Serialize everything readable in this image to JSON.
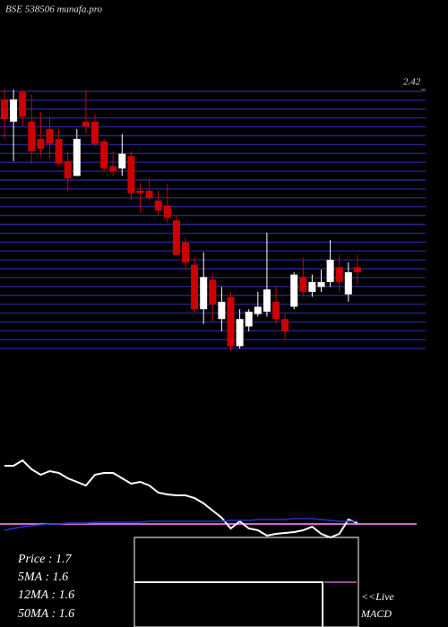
{
  "chart_data": [
    {
      "type": "candlestick",
      "title": "BSE 538506 munafa.pro",
      "ylim": [
        1.36,
        2.42
      ],
      "yticks": [
        2.42
      ],
      "up_color": "#ffffff",
      "down_color": "#cc0000",
      "open": [
        2.38,
        2.29,
        2.41,
        2.29,
        2.22,
        2.26,
        2.22,
        2.13,
        2.07,
        2.29,
        2.29,
        2.21,
        2.11,
        2.1,
        2.15,
        2.01,
        2.01,
        1.97,
        1.95,
        1.89,
        1.8,
        1.71,
        1.53,
        1.65,
        1.49,
        1.58,
        1.38,
        1.46,
        1.51,
        1.52,
        1.56,
        1.49,
        1.54,
        1.66,
        1.6,
        1.62,
        1.64,
        1.7,
        1.59,
        1.7
      ],
      "high": [
        2.42,
        2.42,
        2.42,
        2.4,
        2.33,
        2.31,
        2.26,
        2.17,
        2.26,
        2.42,
        2.32,
        2.22,
        2.17,
        2.24,
        2.17,
        2.04,
        2.06,
        2.01,
        2.04,
        1.91,
        1.82,
        1.74,
        1.76,
        1.67,
        1.62,
        1.6,
        1.53,
        1.53,
        1.6,
        1.84,
        1.62,
        1.51,
        1.68,
        1.74,
        1.67,
        1.69,
        1.81,
        1.75,
        1.72,
        1.75
      ],
      "low": [
        2.22,
        2.13,
        2.27,
        2.12,
        2.15,
        2.14,
        2.11,
        2.01,
        2.07,
        2.24,
        2.19,
        2.09,
        2.07,
        2.07,
        1.97,
        1.92,
        1.97,
        1.91,
        1.88,
        1.75,
        1.69,
        1.52,
        1.47,
        1.48,
        1.44,
        1.36,
        1.37,
        1.44,
        1.5,
        1.5,
        1.47,
        1.41,
        1.53,
        1.58,
        1.58,
        1.6,
        1.62,
        1.6,
        1.56,
        1.63
      ],
      "close": [
        2.3,
        2.38,
        2.31,
        2.17,
        2.18,
        2.2,
        2.12,
        2.06,
        2.22,
        2.27,
        2.2,
        2.1,
        2.09,
        2.16,
        2.0,
        2.0,
        1.98,
        1.93,
        1.9,
        1.75,
        1.72,
        1.53,
        1.66,
        1.55,
        1.56,
        1.38,
        1.49,
        1.52,
        1.54,
        1.61,
        1.49,
        1.44,
        1.67,
        1.6,
        1.64,
        1.64,
        1.73,
        1.64,
        1.68,
        1.68
      ]
    },
    {
      "type": "line",
      "ylim": [
        0,
        100
      ],
      "series": [
        {
          "color": "#ffffff",
          "values": [
            80,
            80,
            86,
            76,
            70,
            74,
            72,
            66,
            62,
            58,
            70,
            72,
            72,
            66,
            60,
            62,
            58,
            50,
            48,
            47,
            47,
            44,
            38,
            30,
            22,
            10,
            18,
            10,
            8,
            2,
            4,
            5,
            6,
            8,
            12,
            4,
            0,
            4,
            20,
            16
          ]
        },
        {
          "color": "#2233cc",
          "values": [
            8,
            10,
            12,
            13,
            14,
            15,
            15,
            16,
            16,
            16,
            17,
            17,
            17,
            17,
            17,
            17,
            18,
            18,
            18,
            18,
            18,
            18,
            18,
            18,
            18,
            19,
            19,
            19,
            20,
            20,
            20,
            20,
            21,
            21,
            21,
            20,
            19,
            18,
            18,
            18
          ]
        }
      ],
      "level": {
        "color": "#cc66cc",
        "value": 15
      }
    },
    {
      "type": "info",
      "lines": [
        "Price   : 1.7",
        "5MA  : 1.6",
        "12MA : 1.6",
        "50MA : 1.6"
      ],
      "live": "<<Live",
      "panel": "MACD"
    }
  ]
}
